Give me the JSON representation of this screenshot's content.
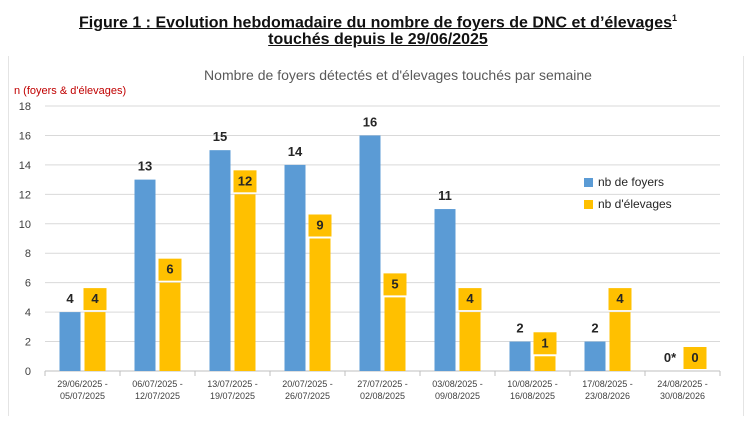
{
  "figure": {
    "title_line1": "Figure 1 : Evolution hebdomadaire du nombre de foyers de DNC et d’élevages",
    "title_sup": "1",
    "title_line2": "touchés depuis le 29/06/2025"
  },
  "chart_data": {
    "type": "bar",
    "title": "Nombre de foyers détectés et d'élevages touchés par semaine",
    "ylabel": "n (foyers & d'élevages)",
    "xlabel": "",
    "ylim": [
      0,
      18
    ],
    "yticks": [
      0,
      2,
      4,
      6,
      8,
      10,
      12,
      14,
      16,
      18
    ],
    "grid": true,
    "legend_position": "right",
    "categories": [
      [
        "29/06/2025 -",
        "05/07/2025"
      ],
      [
        "06/07/2025 -",
        "12/07/2025"
      ],
      [
        "13/07/2025 -",
        "19/07/2025"
      ],
      [
        "20/07/2025 -",
        "26/07/2025"
      ],
      [
        "27/07/2025 -",
        "02/08/2025"
      ],
      [
        "03/08/2025 -",
        "09/08/2025"
      ],
      [
        "10/08/2025 -",
        "16/08/2025"
      ],
      [
        "17/08/2025 -",
        "23/08/2026"
      ],
      [
        "24/08/2025 -",
        "30/08/2026"
      ]
    ],
    "series": [
      {
        "name": "nb de foyers",
        "color": "#5b9bd5",
        "values": [
          4,
          13,
          15,
          14,
          16,
          11,
          2,
          2,
          0
        ],
        "labels": [
          "4",
          "13",
          "15",
          "14",
          "16",
          "11",
          "2",
          "2",
          "0*"
        ]
      },
      {
        "name": "nb  d'élevages",
        "color": "#ffc000",
        "values": [
          4,
          6,
          12,
          9,
          5,
          4,
          1,
          4,
          0
        ],
        "labels": [
          "4",
          "6",
          "12",
          "9",
          "5",
          "4",
          "1",
          "4",
          "0"
        ]
      }
    ]
  }
}
